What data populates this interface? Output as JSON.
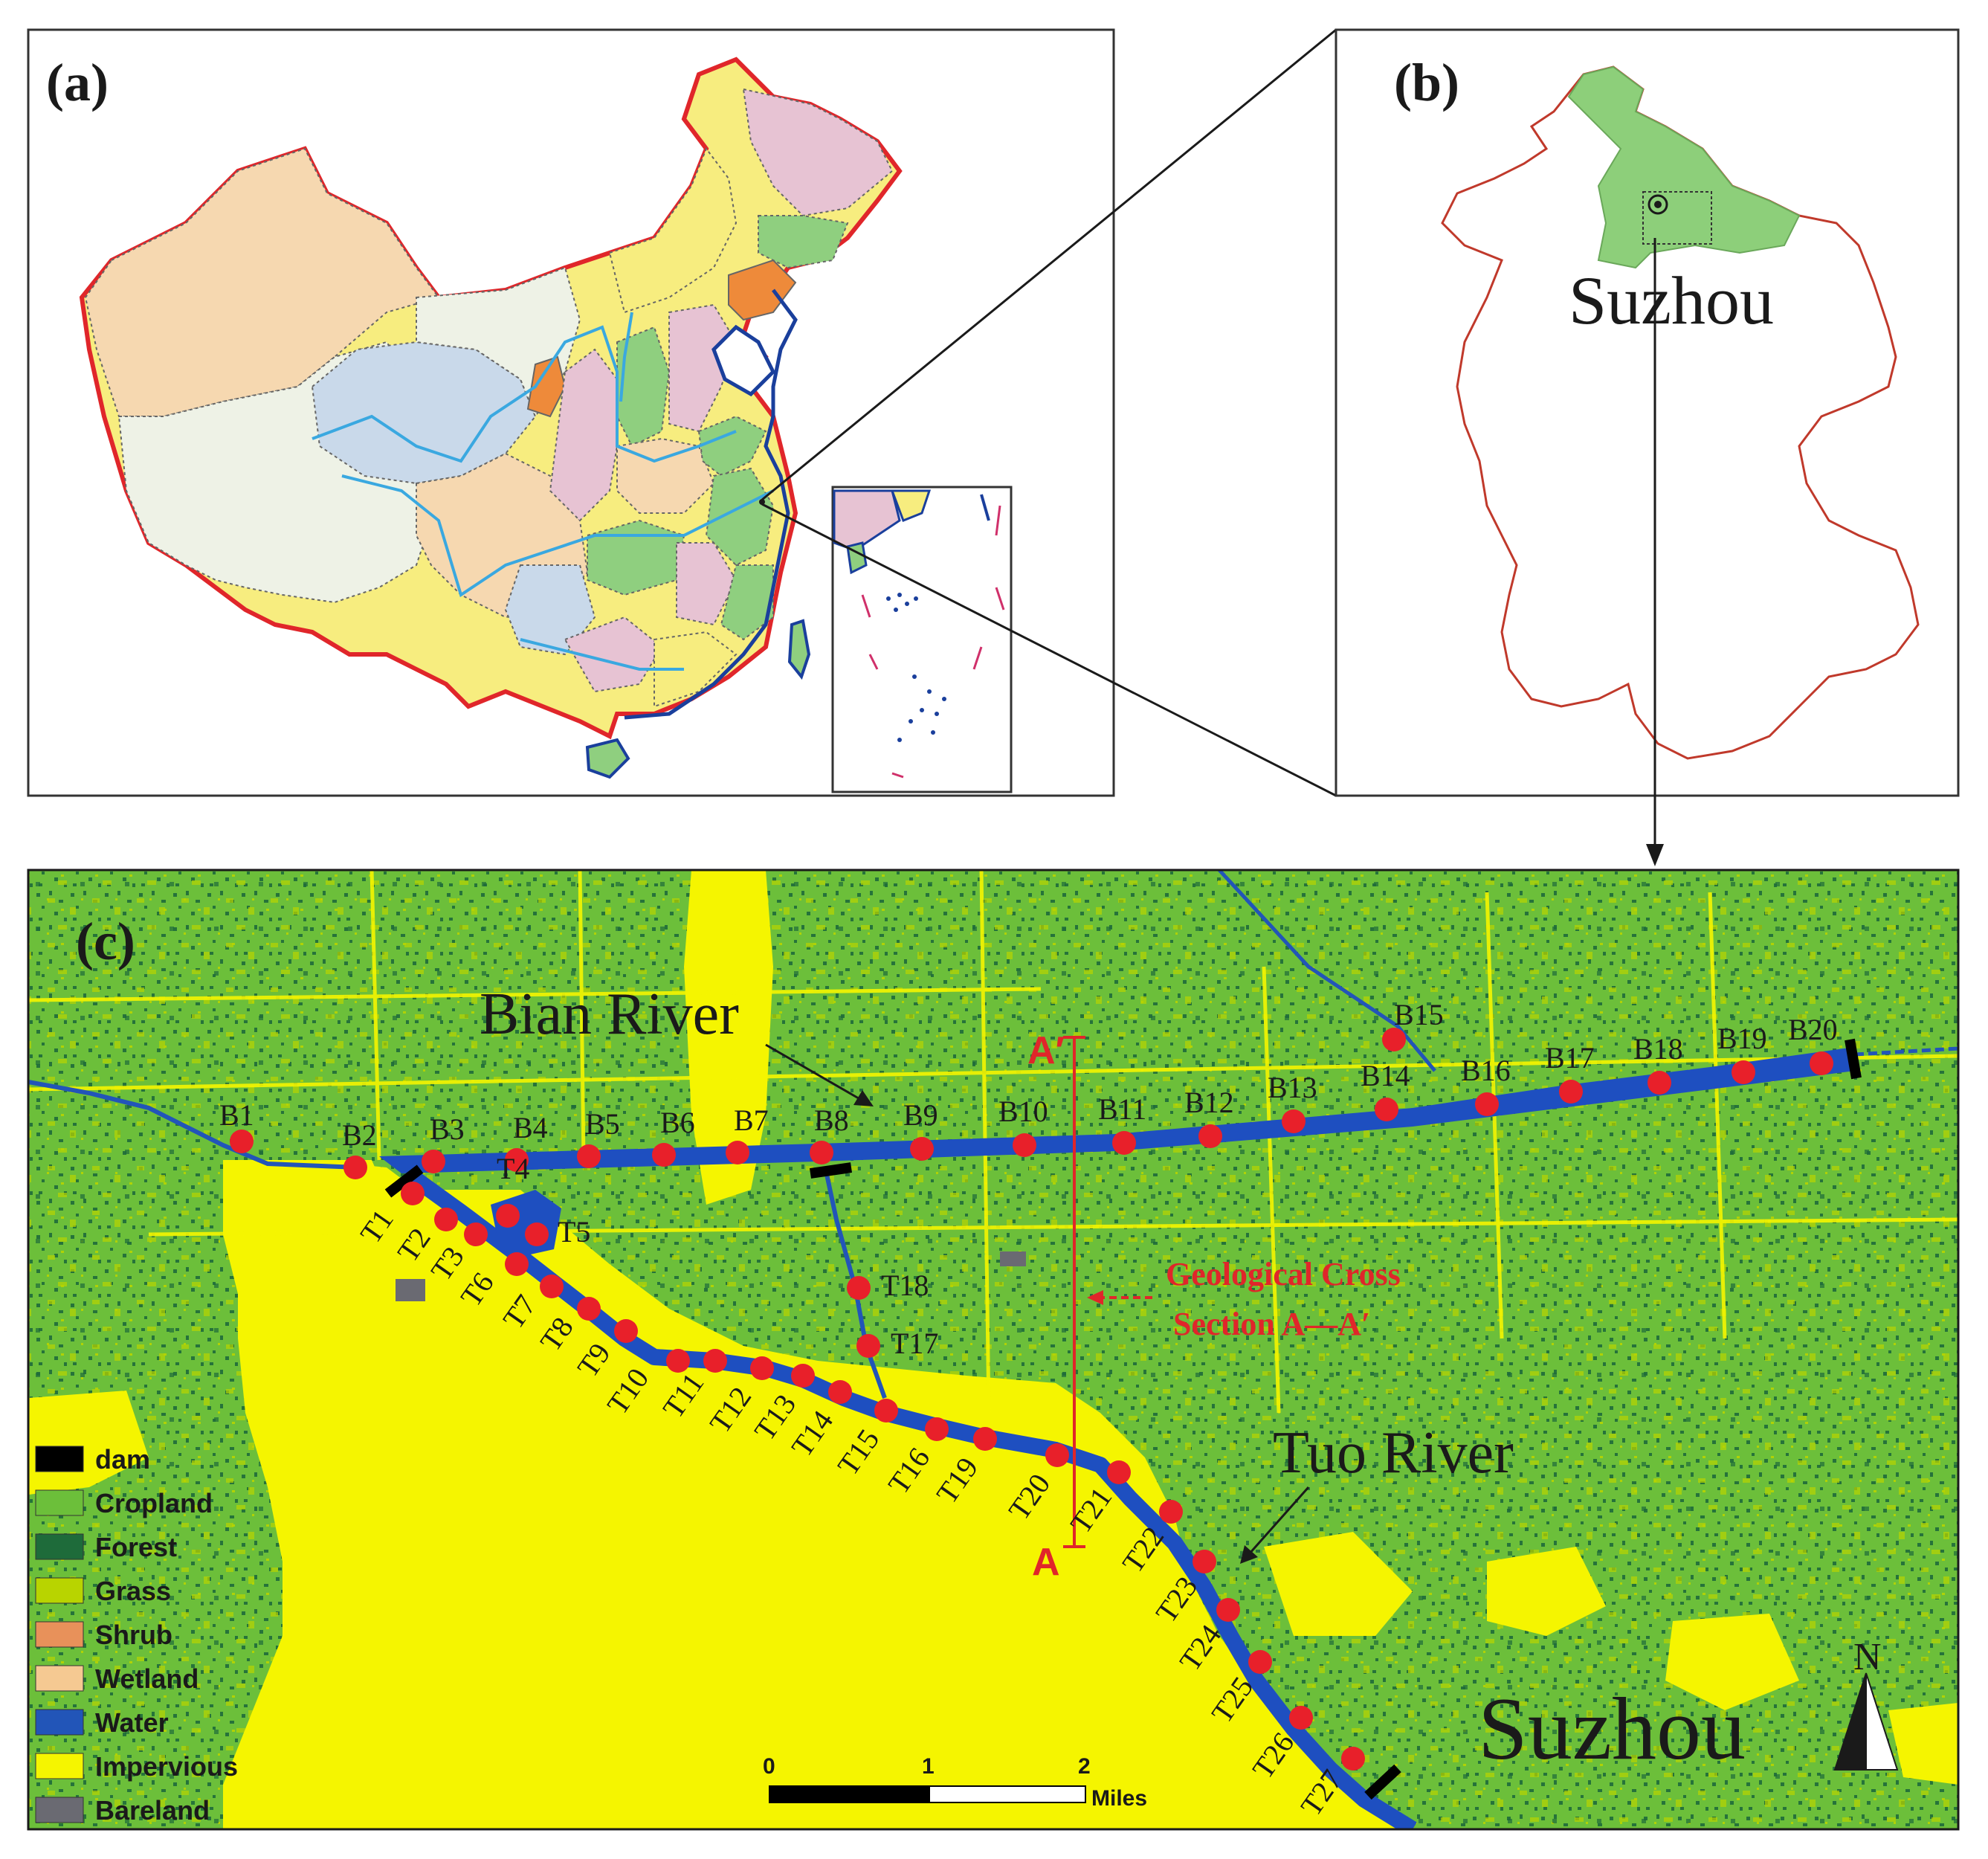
{
  "panel_a": {
    "label": "(a)"
  },
  "panel_b": {
    "label": "(b)",
    "city": "Suzhou"
  },
  "panel_c": {
    "label": "(c)",
    "bian_river": "Bian River",
    "tuo_river": "Tuo River",
    "section_label_1": "Geological Cross",
    "section_label_2": "Section A—A′",
    "section_a": "A",
    "section_a_prime": "A′",
    "city": "Suzhou",
    "north": "N",
    "scalebar": {
      "ticks": [
        "0",
        "1",
        "2"
      ],
      "unit": "Miles"
    },
    "bian_points": [
      "B1",
      "B2",
      "B3",
      "B4",
      "B5",
      "B6",
      "B7",
      "B8",
      "B9",
      "B10",
      "B11",
      "B12",
      "B13",
      "B14",
      "B15",
      "B16",
      "B17",
      "B18",
      "B19",
      "B20"
    ],
    "tuo_points": [
      "T1",
      "T2",
      "T3",
      "T4",
      "T5",
      "T6",
      "T7",
      "T8",
      "T9",
      "T10",
      "T11",
      "T12",
      "T13",
      "T14",
      "T15",
      "T16",
      "T17",
      "T18",
      "T19",
      "T20",
      "T21",
      "T22",
      "T23",
      "T24",
      "T25",
      "T26",
      "T27"
    ],
    "legend": [
      {
        "label": "dam",
        "color": "#000000"
      },
      {
        "label": "Cropland",
        "color": "#6cbf3a"
      },
      {
        "label": "Forest",
        "color": "#1e6b3a"
      },
      {
        "label": "Grass",
        "color": "#b8d400"
      },
      {
        "label": "Shrub",
        "color": "#e8915a"
      },
      {
        "label": "Wetland",
        "color": "#f5c992"
      },
      {
        "label": "Water",
        "color": "#2255b8"
      },
      {
        "label": "Impervious",
        "color": "#f5f500"
      },
      {
        "label": "Bareland",
        "color": "#6a6a72"
      }
    ]
  },
  "colors": {
    "china_border": "#e0262a",
    "province_boundary": "#666666",
    "river": "#3aa8e0",
    "coast": "#1a3f9c",
    "sample_point": "#e8202a",
    "river_channel": "#1e4fc0",
    "section_line": "#e0262a"
  }
}
